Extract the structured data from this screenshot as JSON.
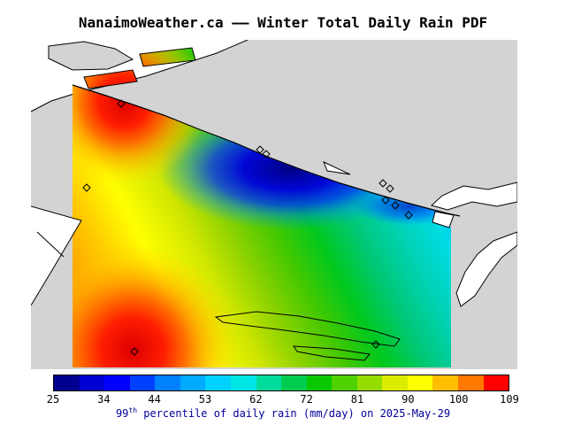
{
  "title": "NanaimoWeather.ca —— Winter Total Daily Rain PDF",
  "map": {
    "land_color": "#d3d3d3",
    "water_color": "#ffffff",
    "coast_color": "#000000",
    "marker_style": "open-diamond"
  },
  "colorbar": {
    "ticks": [
      "25",
      "34",
      "44",
      "53",
      "62",
      "72",
      "81",
      "90",
      "100",
      "109"
    ],
    "colors": [
      "#000090",
      "#0000d2",
      "#0000ff",
      "#0041ff",
      "#0082ff",
      "#00aaff",
      "#00d2ff",
      "#00e6e6",
      "#00dc9b",
      "#00cd50",
      "#0ac800",
      "#50d200",
      "#96dc00",
      "#dcec00",
      "#ffff00",
      "#ffbe00",
      "#ff7800",
      "#ff0000"
    ],
    "border_color": "#000000"
  },
  "caption": {
    "value": "99",
    "sup": "th",
    "rest": " percentile of daily rain (mm/day) on 2025-May-29",
    "color": "#000099"
  },
  "chart_data": {
    "type": "heatmap",
    "title": "NanaimoWeather.ca —— Winter Total Daily Rain PDF",
    "variable": "99th percentile of daily rain",
    "units": "mm/day",
    "date": "2025-May-29",
    "scale_ticks": [
      25,
      34,
      44,
      53,
      62,
      72,
      81,
      90,
      100,
      109
    ],
    "scale_range": [
      25,
      109
    ],
    "legend_position": "bottom",
    "notes": "Filled contour field over coastal map; minimum (dark blue ~25-34) centered offshore upper-middle, maxima (red ~100-109) at two west-edge hotspots (upper-left and lower-left), green/yellow bands run diagonally between."
  }
}
